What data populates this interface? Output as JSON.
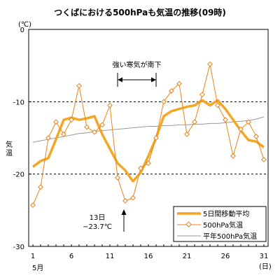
{
  "chart_data": {
    "type": "line",
    "title": "つくばにおける500hPaも気温の推移(09時)",
    "ylabel": "気温",
    "yunit": "(℃)",
    "xunit": "(日)",
    "month_label": "5月",
    "xlim": [
      1,
      31
    ],
    "ylim": [
      -30,
      0
    ],
    "x_ticks": [
      1,
      6,
      11,
      16,
      21,
      26,
      31
    ],
    "y_ticks": [
      0,
      -10,
      -20,
      -30
    ],
    "dashed_grid_y": [
      -10,
      -20
    ],
    "x": [
      1,
      2,
      3,
      4,
      5,
      6,
      7,
      8,
      9,
      10,
      11,
      12,
      13,
      14,
      15,
      16,
      17,
      18,
      19,
      20,
      21,
      22,
      23,
      24,
      25,
      26,
      27,
      28,
      29,
      30,
      31
    ],
    "series": [
      {
        "name": "5日間移動平均",
        "color": "#f5a623",
        "values": [
          -19.0,
          -18.2,
          -17.8,
          -15.2,
          -12.5,
          -12.2,
          -12.5,
          -12.3,
          -12.0,
          -14.5,
          -16.5,
          -18.5,
          -19.5,
          -21.0,
          -19.8,
          -17.5,
          -15.0,
          -12.0,
          -11.3,
          -11.0,
          -10.7,
          -10.5,
          -9.8,
          -10.5,
          -9.8,
          -11.0,
          -12.5,
          -14.0,
          -15.3,
          -15.5,
          -16.3
        ]
      },
      {
        "name": "500hPa気温",
        "color": "#e8821a",
        "values": [
          -24.3,
          -21.8,
          -15.0,
          -12.8,
          -14.5,
          -12.5,
          -7.8,
          -13.5,
          -14.2,
          -13.2,
          -10.5,
          -20.5,
          -23.7,
          -23.3,
          -19.2,
          -18.5,
          -15.0,
          -10.0,
          -8.5,
          -7.5,
          -14.5,
          -12.8,
          -9.0,
          -4.8,
          -10.5,
          -12.5,
          -17.5,
          -13.8,
          -12.8,
          -14.8,
          -18.0
        ]
      },
      {
        "name": "平年500hPa気温",
        "color": "#999999",
        "values": [
          -15.6,
          -15.4,
          -15.2,
          -15.0,
          -14.8,
          -14.6,
          -14.4,
          -14.3,
          -14.1,
          -14.0,
          -13.9,
          -13.8,
          -13.7,
          -13.6,
          -13.5,
          -13.4,
          -13.4,
          -13.3,
          -13.3,
          -13.2,
          -13.2,
          -13.1,
          -13.1,
          -13.0,
          -13.0,
          -12.9,
          -12.8,
          -12.7,
          -12.6,
          -12.4,
          -12.1
        ]
      }
    ],
    "annotations": {
      "cold_air_label": "強い寒気が南下",
      "cold_air_range": [
        12,
        17
      ],
      "min_day_label": "13日",
      "min_value_label": "−23.7℃",
      "min_day": 13
    },
    "legend_position": "bottom-right"
  }
}
